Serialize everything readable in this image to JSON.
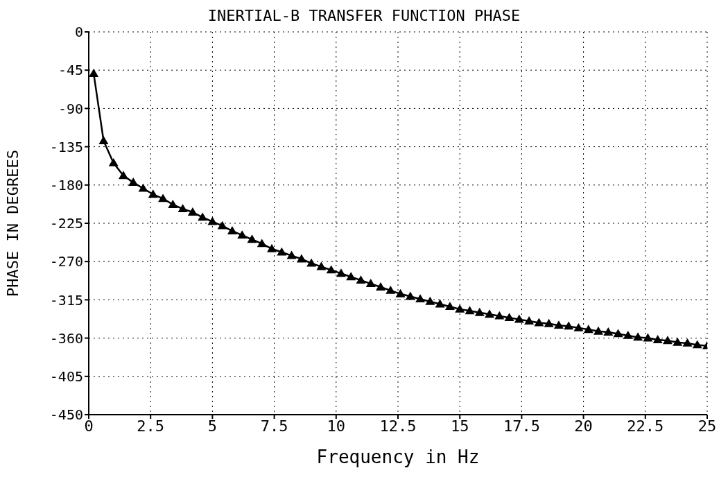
{
  "chart_data": {
    "type": "line",
    "title": "INERTIAL-B TRANSFER FUNCTION PHASE",
    "xlabel": "Frequency in Hz",
    "ylabel": "PHASE IN DEGREES",
    "x": [
      0.2,
      0.6,
      1.0,
      1.4,
      1.8,
      2.2,
      2.6,
      3.0,
      3.4,
      3.8,
      4.2,
      4.6,
      5.0,
      5.4,
      5.8,
      6.2,
      6.6,
      7.0,
      7.4,
      7.8,
      8.2,
      8.6,
      9.0,
      9.4,
      9.8,
      10.2,
      10.6,
      11.0,
      11.4,
      11.8,
      12.2,
      12.6,
      13.0,
      13.4,
      13.8,
      14.2,
      14.6,
      15.0,
      15.4,
      15.8,
      16.2,
      16.6,
      17.0,
      17.4,
      17.8,
      18.2,
      18.6,
      19.0,
      19.4,
      19.8,
      20.2,
      20.6,
      21.0,
      21.4,
      21.8,
      22.2,
      22.6,
      23.0,
      23.4,
      23.8,
      24.2,
      24.6,
      25.0
    ],
    "series": [
      {
        "color": "#000000",
        "values": [
          -49,
          -128,
          -154,
          -169,
          -177,
          -184,
          -191,
          -196,
          -203,
          -208,
          -212,
          -218,
          -223,
          -228,
          -234,
          -239,
          -244,
          -249,
          -255,
          -259,
          -263,
          -267,
          -272,
          -276,
          -280,
          -284,
          -288,
          -292,
          -296,
          -300,
          -304,
          -308,
          -311,
          -314,
          -317,
          -320,
          -323,
          -326,
          -328,
          -330,
          -332,
          -334,
          -336,
          -338,
          -340,
          -342,
          -343,
          -345,
          -346,
          -348,
          -350,
          -352,
          -353,
          -355,
          -357,
          -359,
          -360,
          -362,
          -363,
          -365,
          -366,
          -368,
          -369
        ]
      }
    ],
    "xlim": [
      0,
      25
    ],
    "xticks": [
      0,
      2.5,
      5,
      7.5,
      10,
      12.5,
      15,
      17.5,
      20,
      22.5,
      25
    ],
    "ylim": [
      -450,
      0
    ],
    "yticks": [
      0,
      -45,
      -90,
      -135,
      -180,
      -225,
      -270,
      -315,
      -360,
      -405,
      -450
    ],
    "grid": true,
    "marker": "triangle",
    "line_style": "solid",
    "legend": false
  }
}
